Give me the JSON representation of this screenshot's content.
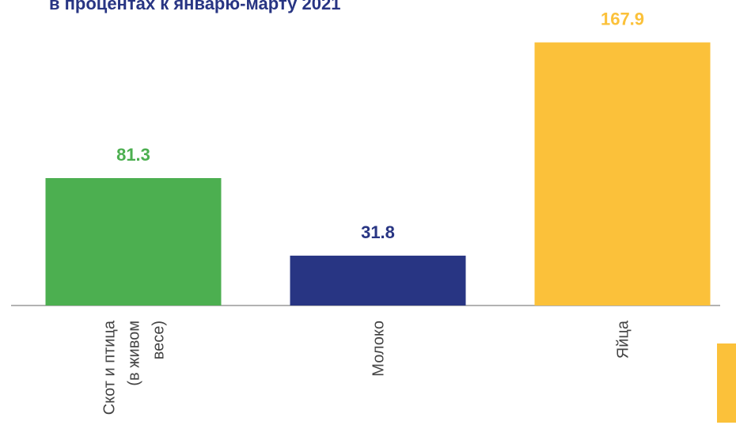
{
  "chart_data": {
    "type": "bar",
    "title": "в процентах к январю-марту 2021",
    "categories": [
      "Скот и птица\n(в живом\nвесе)",
      "Молоко",
      "Яйца"
    ],
    "values": [
      81.3,
      31.8,
      167.9
    ],
    "colors": [
      "#4caf50",
      "#283583",
      "#fbc13a"
    ]
  }
}
